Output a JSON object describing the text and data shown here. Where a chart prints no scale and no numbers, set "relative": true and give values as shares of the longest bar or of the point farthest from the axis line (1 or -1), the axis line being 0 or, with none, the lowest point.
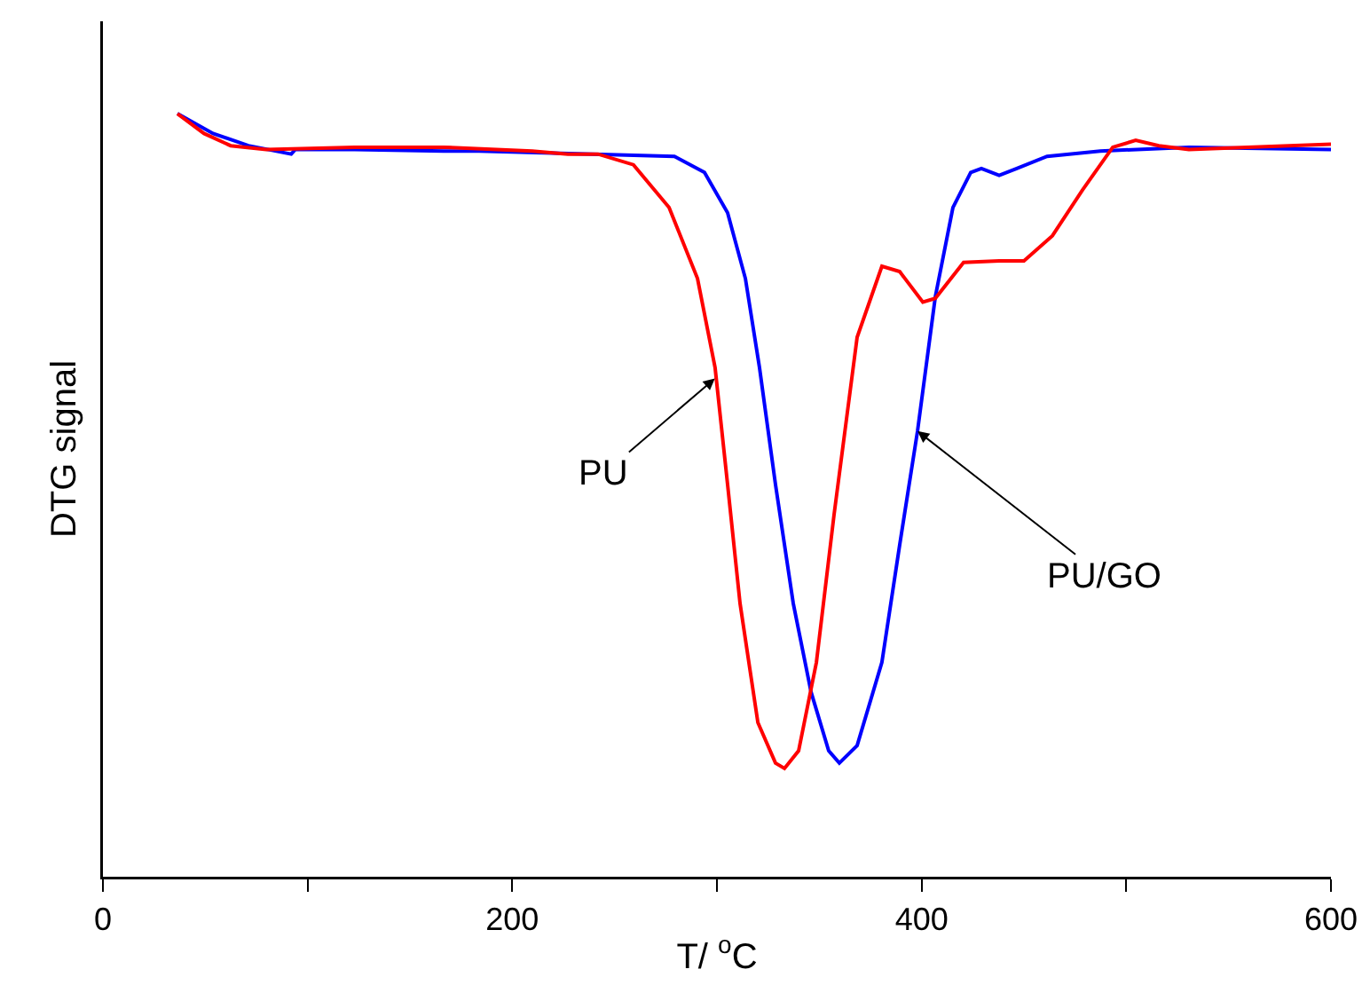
{
  "chart_data": {
    "type": "line",
    "xlabel": "T/ $^{o}$C",
    "ylabel": "DTG signal",
    "relative": true,
    "xlim": [
      0,
      600
    ],
    "xticks": [
      0,
      {
        "value": 100,
        "label": null
      },
      200,
      {
        "value": 300,
        "label": null
      },
      400,
      {
        "value": 500,
        "label": null
      },
      600
    ],
    "grid": false,
    "marker": "none",
    "line_style": "solid",
    "series": [
      {
        "color": "#0000ff",
        "x": [
          36.4,
          53.8,
          71.1,
          92,
          94,
          123,
          166.5,
          183.8,
          279.2,
          293.9,
          305.2,
          313.9,
          320.8,
          328.6,
          337.3,
          346,
          354.6,
          359.8,
          368.5,
          380.6,
          389.3,
          398,
          406.7,
          415.3,
          424,
          429.2,
          437.9,
          446.5,
          461.3,
          487.3,
          530.6,
          600
        ],
        "values": [
          1.0,
          0.974,
          0.958,
          0.947,
          0.953,
          0.953,
          0.951,
          0.951,
          0.944,
          0.923,
          0.87,
          0.784,
          0.667,
          0.514,
          0.358,
          0.242,
          0.165,
          0.149,
          0.172,
          0.281,
          0.435,
          0.584,
          0.76,
          0.877,
          0.923,
          0.928,
          0.919,
          0.928,
          0.944,
          0.951,
          0.956,
          0.953
        ]
      },
      {
        "color": "#ff0000",
        "x": [
          36.4,
          49.4,
          62.4,
          79.8,
          123,
          166.5,
          209.8,
          227.2,
          241.9,
          259.2,
          276.6,
          290.5,
          299.1,
          305.2,
          311.3,
          320,
          328.6,
          333,
          339.9,
          348.6,
          357.2,
          368.5,
          380.6,
          389.3,
          400.6,
          406.7,
          420.5,
          437.9,
          450,
          463.9,
          478.6,
          493.4,
          504.6,
          515.9,
          530.6,
          559.3,
          600
        ],
        "values": [
          1.0,
          0.974,
          0.958,
          0.953,
          0.956,
          0.956,
          0.951,
          0.947,
          0.947,
          0.933,
          0.877,
          0.784,
          0.667,
          0.514,
          0.358,
          0.202,
          0.149,
          0.142,
          0.165,
          0.281,
          0.474,
          0.707,
          0.8,
          0.793,
          0.753,
          0.758,
          0.805,
          0.807,
          0.807,
          0.84,
          0.9,
          0.956,
          0.965,
          0.958,
          0.953,
          0.956,
          0.96
        ]
      }
    ],
    "annotations": [
      {
        "text": "PU",
        "x": 299,
        "y": 0.653
      },
      {
        "text": "PU/GO",
        "x": 398,
        "y": 0.584
      }
    ]
  }
}
